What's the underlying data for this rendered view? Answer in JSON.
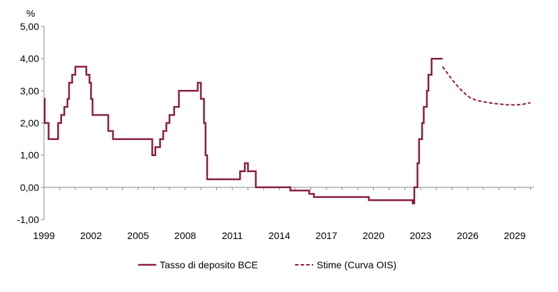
{
  "chart_data": {
    "type": "line",
    "y_unit_label": "%",
    "ylim": [
      -1.0,
      5.0
    ],
    "xlim": [
      1999,
      2030.2
    ],
    "y_ticks": [
      -1,
      0,
      1,
      2,
      3,
      4,
      5
    ],
    "y_tick_labels": [
      "-1,00",
      "0,00",
      "1,00",
      "2,00",
      "3,00",
      "4,00",
      "5,00"
    ],
    "x_ticks": [
      1999,
      2002,
      2005,
      2008,
      2011,
      2014,
      2017,
      2020,
      2023,
      2026,
      2029
    ],
    "x_tick_labels": [
      "1999",
      "2002",
      "2005",
      "2008",
      "2011",
      "2014",
      "2017",
      "2020",
      "2023",
      "2026",
      "2029"
    ],
    "grid": false,
    "legend_position": "bottom",
    "colors": {
      "line": "#8B1E3F",
      "axis": "#888888"
    },
    "series": [
      {
        "name": "Tasso di deposito BCE",
        "style": "solid",
        "x": [
          1999.0,
          1999.05,
          1999.3,
          1999.9,
          2000.1,
          2000.3,
          2000.5,
          2000.6,
          2000.8,
          2001.0,
          2001.3,
          2001.7,
          2001.9,
          2002.0,
          2002.1,
          2002.9,
          2003.1,
          2003.4,
          2005.9,
          2006.1,
          2006.4,
          2006.6,
          2006.8,
          2007.0,
          2007.3,
          2007.6,
          2008.5,
          2008.8,
          2008.85,
          2009.0,
          2009.2,
          2009.3,
          2009.4,
          2011.3,
          2011.5,
          2011.8,
          2012.0,
          2012.5,
          2014.4,
          2014.7,
          2015.9,
          2016.2,
          2019.7,
          2022.5,
          2022.6,
          2022.8,
          2022.9,
          2023.1,
          2023.2,
          2023.4,
          2023.5,
          2023.7,
          2024.4
        ],
        "y": [
          2.75,
          2.0,
          1.5,
          2.0,
          2.25,
          2.5,
          2.75,
          3.25,
          3.5,
          3.75,
          3.75,
          3.5,
          3.25,
          2.75,
          2.25,
          2.25,
          1.75,
          1.5,
          1.0,
          1.25,
          1.5,
          1.75,
          2.0,
          2.25,
          2.5,
          3.0,
          3.0,
          3.25,
          3.25,
          2.75,
          2.0,
          1.0,
          0.25,
          0.25,
          0.5,
          0.75,
          0.5,
          0.0,
          0.0,
          -0.1,
          -0.2,
          -0.3,
          -0.4,
          -0.5,
          0.0,
          0.75,
          1.5,
          2.0,
          2.5,
          3.0,
          3.5,
          4.0,
          4.0
        ]
      },
      {
        "name": "Stime (Curva OIS)",
        "style": "dashed",
        "x": [
          2024.4,
          2024.7,
          2025.0,
          2025.3,
          2025.6,
          2025.9,
          2026.2,
          2026.6,
          2027.0,
          2027.5,
          2028.0,
          2028.5,
          2029.0,
          2029.5,
          2030.0
        ],
        "y": [
          3.75,
          3.55,
          3.35,
          3.18,
          3.02,
          2.88,
          2.77,
          2.7,
          2.66,
          2.62,
          2.59,
          2.57,
          2.56,
          2.58,
          2.63
        ]
      }
    ]
  }
}
